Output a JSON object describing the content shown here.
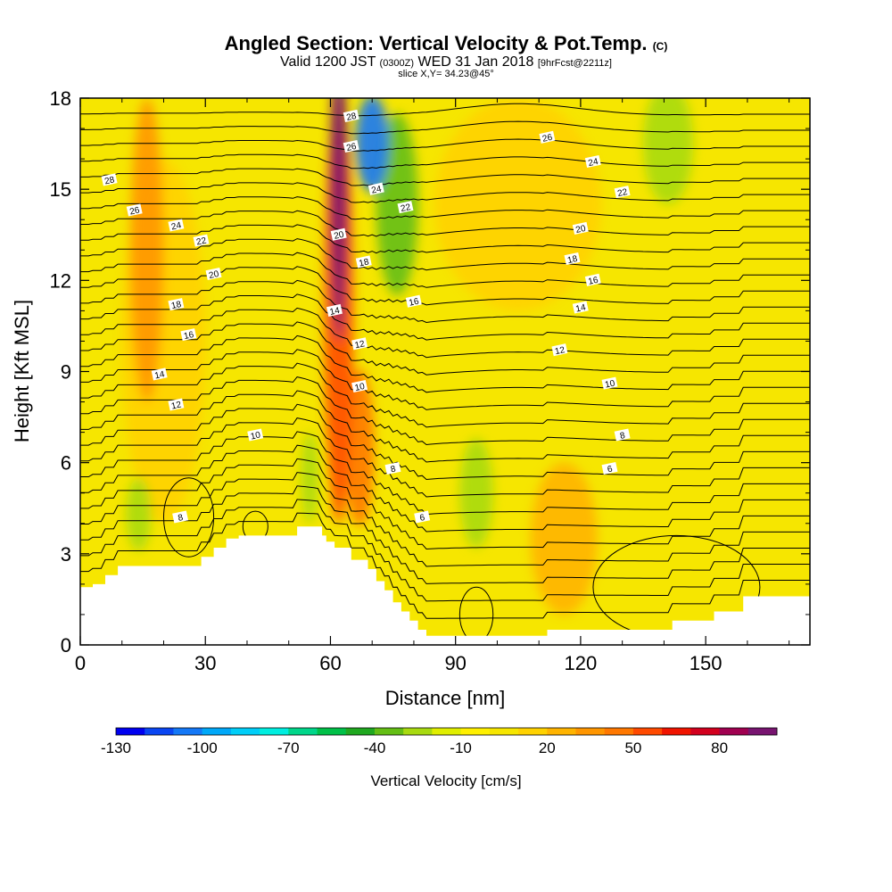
{
  "header": {
    "title": "Angled Section: Vertical Velocity & Pot.Temp.",
    "title_suffix": "(C)",
    "valid_prefix": "Valid 1200 JST",
    "valid_utc": "(0300Z)",
    "valid_date": "WED 31 Jan 2018",
    "forecast": "[9hrFcst@2211z]",
    "slice": "slice X,Y= 34.23@45°"
  },
  "chart_data": {
    "type": "heatmap",
    "xlabel": "Distance [nm]",
    "ylabel": "Height [Kft MSL]",
    "xlim": [
      0,
      175
    ],
    "ylim": [
      0,
      18
    ],
    "x_ticks": [
      0,
      30,
      60,
      90,
      120,
      150
    ],
    "y_ticks": [
      0,
      3,
      6,
      9,
      12,
      15,
      18
    ],
    "colorbar": {
      "label": "Vertical Velocity [cm/s]",
      "tick_labels": [
        "-130",
        "-100",
        "-70",
        "-40",
        "-10",
        "20",
        "50",
        "80"
      ],
      "tick_values": [
        -130,
        -100,
        -70,
        -40,
        -10,
        20,
        50,
        80
      ],
      "bins": [
        -130,
        -120,
        -110,
        -100,
        -90,
        -80,
        -70,
        -60,
        -50,
        -40,
        -30,
        -20,
        -10,
        0,
        10,
        20,
        30,
        40,
        50,
        60,
        70,
        80,
        90,
        100
      ],
      "colors": [
        "#0000f0",
        "#0a46f2",
        "#1478f6",
        "#00a8f8",
        "#00cef8",
        "#00eee0",
        "#00d68a",
        "#00c048",
        "#20a820",
        "#64be14",
        "#a8da10",
        "#e0ee00",
        "#fff000",
        "#f6e600",
        "#ffd200",
        "#ffb400",
        "#ff9600",
        "#ff7800",
        "#ff4a00",
        "#f01400",
        "#d2001e",
        "#a00050",
        "#781470"
      ]
    },
    "terrain_profile": {
      "x": [
        0,
        3,
        3,
        6,
        6,
        9,
        9,
        29,
        29,
        32,
        32,
        35,
        35,
        38,
        38,
        52,
        52,
        58,
        58,
        59,
        59,
        61,
        61,
        65,
        65,
        69,
        69,
        71,
        71,
        73,
        73,
        75,
        75,
        77,
        77,
        79,
        79,
        81,
        81,
        83,
        83,
        112,
        112,
        142,
        142,
        152,
        152,
        159,
        159,
        175
      ],
      "y": [
        1.9,
        1.9,
        2.0,
        2.0,
        2.3,
        2.3,
        2.6,
        2.6,
        2.9,
        2.9,
        3.2,
        3.2,
        3.5,
        3.5,
        3.6,
        3.6,
        3.9,
        3.9,
        3.6,
        3.6,
        3.4,
        3.4,
        3.2,
        3.2,
        2.8,
        2.8,
        2.5,
        2.5,
        2.1,
        2.1,
        1.8,
        1.8,
        1.4,
        1.4,
        1.1,
        1.1,
        0.8,
        0.8,
        0.5,
        0.5,
        0.3,
        0.3,
        0.5,
        0.5,
        0.8,
        0.8,
        1.1,
        1.1,
        1.6,
        1.6
      ]
    },
    "vertical_velocity_field": [
      {
        "x": 62,
        "y": 15,
        "rx": 2.0,
        "ry": 5.0,
        "value": 95
      },
      {
        "x": 62,
        "y": 11,
        "rx": 3.5,
        "ry": 7.0,
        "value": 55
      },
      {
        "x": 67,
        "y": 6.5,
        "rx": 3.5,
        "ry": 2.6,
        "value": 45
      },
      {
        "x": 70,
        "y": 16.5,
        "rx": 4.0,
        "ry": 1.6,
        "value": -105
      },
      {
        "x": 76,
        "y": 14.5,
        "rx": 5.0,
        "ry": 3.0,
        "value": -40
      },
      {
        "x": 141,
        "y": 16.5,
        "rx": 6.0,
        "ry": 2.0,
        "value": -30
      },
      {
        "x": 16,
        "y": 13,
        "rx": 4.0,
        "ry": 5.0,
        "value": 30
      },
      {
        "x": 95,
        "y": 5.0,
        "rx": 4.0,
        "ry": 1.8,
        "value": -30
      },
      {
        "x": 55,
        "y": 5.5,
        "rx": 2.0,
        "ry": 1.5,
        "value": -30
      },
      {
        "x": 14,
        "y": 4.3,
        "rx": 3.0,
        "ry": 1.2,
        "value": -30
      },
      {
        "x": 116,
        "y": 3.5,
        "rx": 8.0,
        "ry": 2.5,
        "value": 20
      },
      {
        "x": 20,
        "y": 10.0,
        "rx": 10.0,
        "ry": 6.0,
        "value": 10
      },
      {
        "x": 105,
        "y": 14.5,
        "rx": 20.0,
        "ry": 3.5,
        "value": 10
      }
    ],
    "potential_temperature_labels": [
      {
        "x": 7,
        "y": 15.3,
        "value": "28"
      },
      {
        "x": 13,
        "y": 14.3,
        "value": "26"
      },
      {
        "x": 23,
        "y": 13.8,
        "value": "24"
      },
      {
        "x": 29,
        "y": 13.3,
        "value": "22"
      },
      {
        "x": 32,
        "y": 12.2,
        "value": "20"
      },
      {
        "x": 23,
        "y": 11.2,
        "value": "18"
      },
      {
        "x": 26,
        "y": 10.2,
        "value": "16"
      },
      {
        "x": 19,
        "y": 8.9,
        "value": "14"
      },
      {
        "x": 23,
        "y": 7.9,
        "value": "12"
      },
      {
        "x": 42,
        "y": 6.9,
        "value": "10"
      },
      {
        "x": 24,
        "y": 4.2,
        "value": "8"
      },
      {
        "x": 65,
        "y": 17.4,
        "value": "28"
      },
      {
        "x": 65,
        "y": 16.4,
        "value": "26"
      },
      {
        "x": 71,
        "y": 15.0,
        "value": "24"
      },
      {
        "x": 78,
        "y": 14.4,
        "value": "22"
      },
      {
        "x": 62,
        "y": 13.5,
        "value": "20"
      },
      {
        "x": 68,
        "y": 12.6,
        "value": "18"
      },
      {
        "x": 61,
        "y": 11.0,
        "value": "14"
      },
      {
        "x": 67,
        "y": 9.9,
        "value": "12"
      },
      {
        "x": 67,
        "y": 8.5,
        "value": "10"
      },
      {
        "x": 75,
        "y": 5.8,
        "value": "8"
      },
      {
        "x": 82,
        "y": 4.2,
        "value": "6"
      },
      {
        "x": 80,
        "y": 11.3,
        "value": "16"
      },
      {
        "x": 112,
        "y": 16.7,
        "value": "26"
      },
      {
        "x": 123,
        "y": 15.9,
        "value": "24"
      },
      {
        "x": 130,
        "y": 14.9,
        "value": "22"
      },
      {
        "x": 120,
        "y": 13.7,
        "value": "20"
      },
      {
        "x": 118,
        "y": 12.7,
        "value": "18"
      },
      {
        "x": 123,
        "y": 12.0,
        "value": "16"
      },
      {
        "x": 120,
        "y": 11.1,
        "value": "14"
      },
      {
        "x": 115,
        "y": 9.7,
        "value": "12"
      },
      {
        "x": 127,
        "y": 8.6,
        "value": "10"
      },
      {
        "x": 130,
        "y": 6.9,
        "value": "8"
      },
      {
        "x": 127,
        "y": 5.8,
        "value": "6"
      }
    ]
  }
}
